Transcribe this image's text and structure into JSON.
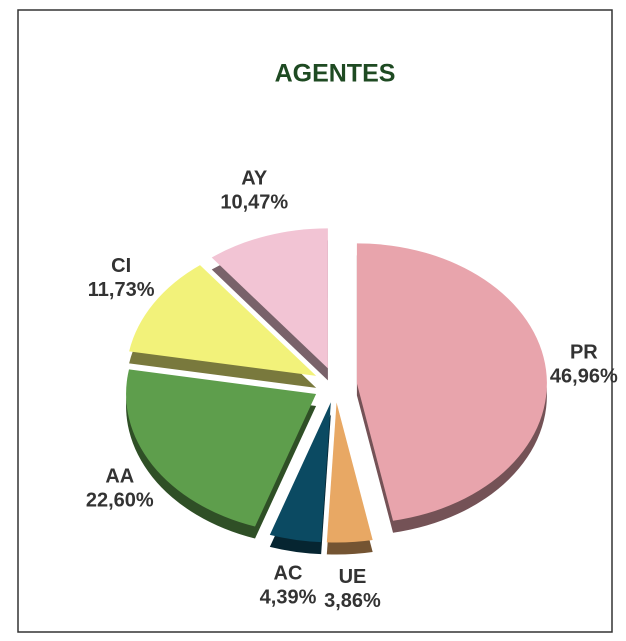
{
  "chart_data": {
    "type": "pie",
    "title": "AGENTES",
    "categories": [
      "PR",
      "UE",
      "AC",
      "AA",
      "CI",
      "AY"
    ],
    "values": [
      46.96,
      3.86,
      4.39,
      22.6,
      11.73,
      10.47
    ],
    "value_labels": [
      "46,96%",
      "3,86%",
      "4,39%",
      "22,60%",
      "11,73%",
      "10,47%"
    ],
    "colors": [
      "#e8a4ac",
      "#e8a864",
      "#0b4a62",
      "#5e9e4c",
      "#f2f27a",
      "#f2c4d4"
    ]
  }
}
